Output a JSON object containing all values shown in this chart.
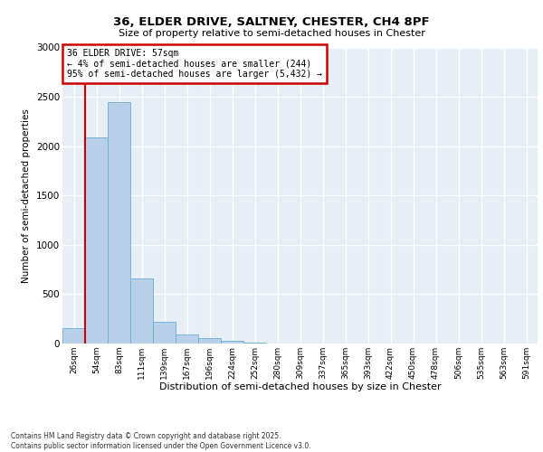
{
  "title_line1": "36, ELDER DRIVE, SALTNEY, CHESTER, CH4 8PF",
  "title_line2": "Size of property relative to semi-detached houses in Chester",
  "xlabel": "Distribution of semi-detached houses by size in Chester",
  "ylabel": "Number of semi-detached properties",
  "categories": [
    "26sqm",
    "54sqm",
    "83sqm",
    "111sqm",
    "139sqm",
    "167sqm",
    "196sqm",
    "224sqm",
    "252sqm",
    "280sqm",
    "309sqm",
    "337sqm",
    "365sqm",
    "393sqm",
    "422sqm",
    "450sqm",
    "478sqm",
    "506sqm",
    "535sqm",
    "563sqm",
    "591sqm"
  ],
  "values": [
    160,
    2090,
    2450,
    660,
    220,
    95,
    55,
    30,
    5,
    0,
    0,
    0,
    0,
    0,
    0,
    0,
    0,
    0,
    0,
    0,
    0
  ],
  "bar_color": "#b8d0e8",
  "bar_edge_color": "#6baed6",
  "vline_color": "#cc0000",
  "vline_pos": 0.57,
  "annotation_title": "36 ELDER DRIVE: 57sqm",
  "annotation_line2": "← 4% of semi-detached houses are smaller (244)",
  "annotation_line3": "95% of semi-detached houses are larger (5,432) →",
  "annotation_box_edgecolor": "#cc0000",
  "ylim": [
    0,
    3000
  ],
  "yticks": [
    0,
    500,
    1000,
    1500,
    2000,
    2500,
    3000
  ],
  "bg_color": "#e8eef6",
  "footer_line1": "Contains HM Land Registry data © Crown copyright and database right 2025.",
  "footer_line2": "Contains public sector information licensed under the Open Government Licence v3.0."
}
